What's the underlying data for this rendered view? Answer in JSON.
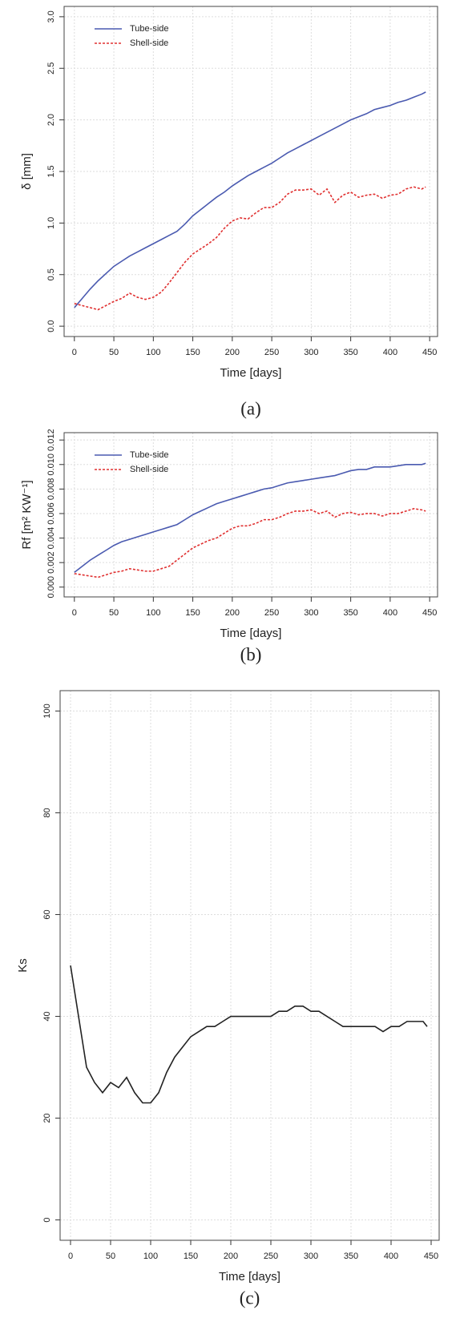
{
  "chart_data": [
    {
      "type": "line",
      "xlabel": "Time [days]",
      "ylabel": "δ [mm]",
      "caption": "(a)",
      "x": [
        0,
        10,
        20,
        30,
        40,
        50,
        60,
        70,
        80,
        90,
        100,
        110,
        120,
        130,
        140,
        150,
        160,
        170,
        180,
        190,
        200,
        210,
        220,
        230,
        240,
        250,
        260,
        270,
        280,
        290,
        300,
        310,
        320,
        330,
        340,
        350,
        360,
        370,
        380,
        390,
        400,
        410,
        420,
        430,
        440,
        445
      ],
      "series": [
        {
          "name": "Tube-side",
          "color": "#4a5ab0",
          "linestyle": "solid",
          "values": [
            0.18,
            0.27,
            0.36,
            0.44,
            0.51,
            0.58,
            0.63,
            0.68,
            0.72,
            0.76,
            0.8,
            0.84,
            0.88,
            0.92,
            0.99,
            1.07,
            1.13,
            1.19,
            1.25,
            1.3,
            1.36,
            1.41,
            1.46,
            1.5,
            1.54,
            1.58,
            1.63,
            1.68,
            1.72,
            1.76,
            1.8,
            1.84,
            1.88,
            1.92,
            1.96,
            2.0,
            2.03,
            2.06,
            2.1,
            2.12,
            2.14,
            2.17,
            2.19,
            2.22,
            2.25,
            2.27
          ]
        },
        {
          "name": "Shell-side",
          "color": "#e03030",
          "linestyle": "dashed",
          "values": [
            0.22,
            0.2,
            0.18,
            0.16,
            0.2,
            0.24,
            0.27,
            0.32,
            0.28,
            0.26,
            0.28,
            0.33,
            0.42,
            0.52,
            0.62,
            0.7,
            0.75,
            0.8,
            0.86,
            0.95,
            1.02,
            1.05,
            1.04,
            1.1,
            1.15,
            1.15,
            1.2,
            1.28,
            1.32,
            1.32,
            1.33,
            1.27,
            1.33,
            1.2,
            1.27,
            1.3,
            1.25,
            1.27,
            1.28,
            1.24,
            1.27,
            1.28,
            1.33,
            1.35,
            1.33,
            1.35
          ]
        }
      ],
      "xlim": [
        -13,
        460
      ],
      "ylim": [
        -0.1,
        3.1
      ],
      "xticks": [
        0,
        50,
        100,
        150,
        200,
        250,
        300,
        350,
        400,
        450
      ],
      "yticks": [
        {
          "value": 0,
          "label": "0.0"
        },
        0.5,
        {
          "value": 1,
          "label": "1.0"
        },
        1.5,
        {
          "value": 2,
          "label": "2.0"
        },
        2.5,
        {
          "value": 3,
          "label": "3.0"
        }
      ],
      "grid": true,
      "legend": "upper-left"
    },
    {
      "type": "line",
      "xlabel": "Time [days]",
      "ylabel": "Rf [m² KW⁻¹]",
      "caption": "(b)",
      "x": [
        0,
        10,
        20,
        30,
        40,
        50,
        60,
        70,
        80,
        90,
        100,
        110,
        120,
        130,
        140,
        150,
        160,
        170,
        180,
        190,
        200,
        210,
        220,
        230,
        240,
        250,
        260,
        270,
        280,
        290,
        300,
        310,
        320,
        330,
        340,
        350,
        360,
        370,
        380,
        390,
        400,
        410,
        420,
        430,
        440,
        445
      ],
      "series": [
        {
          "name": "Tube-side",
          "color": "#4a5ab0",
          "linestyle": "solid",
          "values": [
            0.0012,
            0.0017,
            0.0022,
            0.0026,
            0.003,
            0.0034,
            0.0037,
            0.0039,
            0.0041,
            0.0043,
            0.0045,
            0.0047,
            0.0049,
            0.0051,
            0.0055,
            0.0059,
            0.0062,
            0.0065,
            0.0068,
            0.007,
            0.0072,
            0.0074,
            0.0076,
            0.0078,
            0.008,
            0.0081,
            0.0083,
            0.0085,
            0.0086,
            0.0087,
            0.0088,
            0.0089,
            0.009,
            0.0091,
            0.0093,
            0.0095,
            0.0096,
            0.0096,
            0.0098,
            0.0098,
            0.0098,
            0.0099,
            0.01,
            0.01,
            0.01,
            0.0101
          ]
        },
        {
          "name": "Shell-side",
          "color": "#e03030",
          "linestyle": "dashed",
          "values": [
            0.0011,
            0.001,
            0.0009,
            0.0008,
            0.001,
            0.0012,
            0.0013,
            0.0015,
            0.0014,
            0.0013,
            0.0013,
            0.0015,
            0.0017,
            0.0022,
            0.0027,
            0.0032,
            0.0035,
            0.0038,
            0.004,
            0.0044,
            0.0048,
            0.005,
            0.005,
            0.0052,
            0.0055,
            0.0055,
            0.0057,
            0.006,
            0.0062,
            0.0062,
            0.0063,
            0.006,
            0.0062,
            0.0057,
            0.006,
            0.0061,
            0.0059,
            0.006,
            0.006,
            0.0058,
            0.006,
            0.006,
            0.0062,
            0.0064,
            0.0063,
            0.0062
          ]
        }
      ],
      "xlim": [
        -13,
        460
      ],
      "ylim": [
        -0.0008,
        0.0126
      ],
      "xticks": [
        0,
        50,
        100,
        150,
        200,
        250,
        300,
        350,
        400,
        450
      ],
      "yticks": [
        {
          "value": 0,
          "label": "0.000"
        },
        {
          "value": 0.002,
          "label": "0.002"
        },
        {
          "value": 0.004,
          "label": "0.004"
        },
        {
          "value": 0.006,
          "label": "0.006"
        },
        {
          "value": 0.008,
          "label": "0.008"
        },
        {
          "value": 0.01,
          "label": "0.010"
        },
        {
          "value": 0.012,
          "label": "0.012"
        }
      ],
      "grid": true,
      "legend": "upper-left"
    },
    {
      "type": "line",
      "xlabel": "Time [days]",
      "ylabel": "Ks",
      "caption": "(c)",
      "x": [
        0,
        10,
        20,
        30,
        40,
        50,
        60,
        70,
        80,
        90,
        100,
        110,
        120,
        130,
        140,
        150,
        160,
        170,
        180,
        190,
        200,
        210,
        220,
        230,
        240,
        250,
        260,
        270,
        280,
        290,
        300,
        310,
        320,
        330,
        340,
        350,
        360,
        370,
        380,
        390,
        400,
        410,
        420,
        430,
        440,
        445
      ],
      "series": [
        {
          "color": "#222222",
          "linestyle": "solid",
          "values": [
            50,
            40,
            30,
            27,
            25,
            27,
            26,
            28,
            25,
            23,
            23,
            25,
            29,
            32,
            34,
            36,
            37,
            38,
            38,
            39,
            40,
            40,
            40,
            40,
            40,
            40,
            41,
            41,
            42,
            42,
            41,
            41,
            40,
            39,
            38,
            38,
            38,
            38,
            38,
            37,
            38,
            38,
            39,
            39,
            39,
            38
          ]
        }
      ],
      "xlim": [
        -13,
        460
      ],
      "ylim": [
        -4,
        104
      ],
      "xticks": [
        0,
        50,
        100,
        150,
        200,
        250,
        300,
        350,
        400,
        450
      ],
      "yticks": [
        0,
        20,
        40,
        60,
        80,
        100
      ],
      "grid": true
    }
  ]
}
